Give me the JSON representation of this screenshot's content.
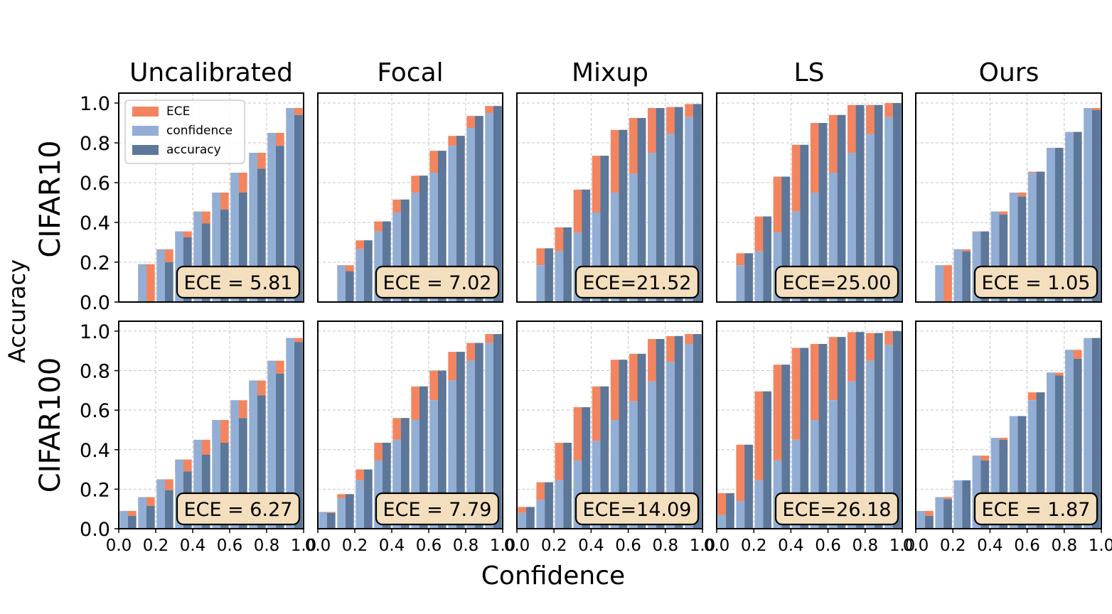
{
  "figure": {
    "xlabel": "Confidence",
    "ylabel": "Accuracy",
    "col_titles": [
      "Uncalibrated",
      "Focal",
      "Mixup",
      "LS",
      "Ours"
    ],
    "row_titles": [
      "CIFAR10",
      "CIFAR100"
    ]
  },
  "legend": {
    "placement": "upper-left of first panel",
    "entries": [
      {
        "name": "ECE",
        "color": "#f2855f"
      },
      {
        "name": "confidence",
        "color": "#93aed4"
      },
      {
        "name": "accuracy",
        "color": "#5c7799"
      }
    ]
  },
  "colors": {
    "ece": "#f2855f",
    "confidence": "#93aed4",
    "accuracy": "#5c7799",
    "ece_box": "#f3dfbd"
  },
  "axes": {
    "xlim": [
      0.0,
      1.0
    ],
    "ylim": [
      0.0,
      1.05
    ],
    "xticks": [
      "0.0",
      "0.2",
      "0.4",
      "0.6",
      "0.8",
      "1.0"
    ],
    "yticks": [
      "0.0",
      "0.2",
      "0.4",
      "0.6",
      "0.8",
      "1.0"
    ],
    "grid": true
  },
  "chart_data": [
    {
      "type": "bar",
      "row": "CIFAR10",
      "method": "Uncalibrated",
      "ece_label": "ECE = 5.81",
      "confidence": [
        0,
        0.19,
        0.265,
        0.355,
        0.455,
        0.55,
        0.65,
        0.75,
        0.85,
        0.975
      ],
      "accuracy": [
        0,
        0,
        0.2,
        0.325,
        0.395,
        0.465,
        0.55,
        0.67,
        0.785,
        0.94
      ]
    },
    {
      "type": "bar",
      "row": "CIFAR10",
      "method": "Focal",
      "ece_label": "ECE = 7.02",
      "confidence": [
        0,
        0.185,
        0.265,
        0.355,
        0.45,
        0.55,
        0.65,
        0.785,
        0.875,
        0.95
      ],
      "accuracy": [
        0,
        0.155,
        0.31,
        0.405,
        0.515,
        0.635,
        0.76,
        0.835,
        0.935,
        0.985
      ]
    },
    {
      "type": "bar",
      "row": "CIFAR10",
      "method": "Mixup",
      "ece_label": "ECE=21.52",
      "confidence": [
        0,
        0.185,
        0.255,
        0.35,
        0.45,
        0.55,
        0.645,
        0.75,
        0.845,
        0.93
      ],
      "accuracy": [
        0,
        0.27,
        0.375,
        0.565,
        0.735,
        0.865,
        0.925,
        0.975,
        0.98,
        0.995
      ]
    },
    {
      "type": "bar",
      "row": "CIFAR10",
      "method": "LS",
      "ece_label": "ECE=25.00",
      "confidence": [
        0,
        0.185,
        0.255,
        0.35,
        0.455,
        0.55,
        0.65,
        0.75,
        0.845,
        0.93
      ],
      "accuracy": [
        0,
        0.245,
        0.43,
        0.63,
        0.79,
        0.9,
        0.94,
        0.99,
        0.99,
        1.0
      ]
    },
    {
      "type": "bar",
      "row": "CIFAR10",
      "method": "Ours",
      "ece_label": "ECE = 1.05",
      "confidence": [
        0,
        0.185,
        0.265,
        0.355,
        0.455,
        0.55,
        0.65,
        0.775,
        0.855,
        0.975
      ],
      "accuracy": [
        0,
        0,
        0.255,
        0.355,
        0.44,
        0.53,
        0.655,
        0.775,
        0.855,
        0.965
      ]
    },
    {
      "type": "bar",
      "row": "CIFAR100",
      "method": "Uncalibrated",
      "ece_label": "ECE = 6.27",
      "confidence": [
        0.09,
        0.16,
        0.25,
        0.35,
        0.45,
        0.55,
        0.65,
        0.75,
        0.85,
        0.965
      ],
      "accuracy": [
        0.065,
        0.115,
        0.195,
        0.29,
        0.375,
        0.435,
        0.56,
        0.675,
        0.785,
        0.945
      ]
    },
    {
      "type": "bar",
      "row": "CIFAR100",
      "method": "Focal",
      "ece_label": "ECE = 7.79",
      "confidence": [
        0.085,
        0.155,
        0.245,
        0.345,
        0.45,
        0.55,
        0.65,
        0.75,
        0.85,
        0.94
      ],
      "accuracy": [
        0.08,
        0.175,
        0.3,
        0.435,
        0.56,
        0.72,
        0.8,
        0.895,
        0.94,
        0.985
      ]
    },
    {
      "type": "bar",
      "row": "CIFAR100",
      "method": "Mixup",
      "ece_label": "ECE=14.09",
      "confidence": [
        0.08,
        0.145,
        0.245,
        0.345,
        0.445,
        0.55,
        0.645,
        0.745,
        0.845,
        0.935
      ],
      "accuracy": [
        0.11,
        0.235,
        0.435,
        0.615,
        0.72,
        0.855,
        0.885,
        0.96,
        0.975,
        0.985
      ]
    },
    {
      "type": "bar",
      "row": "CIFAR100",
      "method": "LS",
      "ece_label": "ECE=26.18",
      "confidence": [
        0.07,
        0.14,
        0.245,
        0.345,
        0.45,
        0.55,
        0.65,
        0.745,
        0.85,
        0.93
      ],
      "accuracy": [
        0.18,
        0.425,
        0.695,
        0.83,
        0.915,
        0.935,
        0.97,
        0.995,
        0.99,
        1.0
      ]
    },
    {
      "type": "bar",
      "row": "CIFAR100",
      "method": "Ours",
      "ece_label": "ECE = 1.87",
      "confidence": [
        0.09,
        0.16,
        0.245,
        0.37,
        0.46,
        0.57,
        0.65,
        0.79,
        0.905,
        0.965
      ],
      "accuracy": [
        0.065,
        0.15,
        0.245,
        0.345,
        0.45,
        0.57,
        0.69,
        0.775,
        0.86,
        0.965
      ]
    }
  ]
}
